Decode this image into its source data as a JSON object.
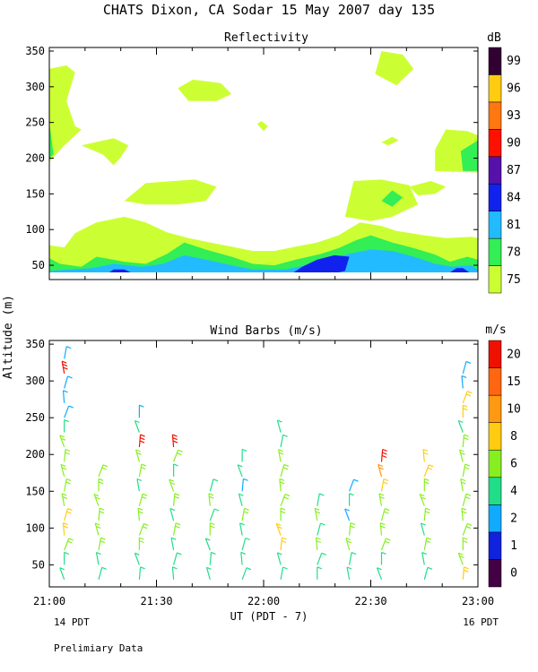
{
  "title": "CHATS Dixon, CA  Sodar  15 May 2007  day 135",
  "ylabel": "Altitude (m)",
  "xlabel": "UT  (PDT - 7)",
  "footer": {
    "left_local": "14 PDT",
    "right_local": "16 PDT",
    "note": "Prelimiary Data"
  },
  "chart_data": [
    {
      "type": "heatmap",
      "title": "Reflectivity",
      "colorbar_unit": "dB",
      "x_ticks": [
        "21:00",
        "21:30",
        "22:00",
        "22:30",
        "23:00"
      ],
      "x_range_hours": [
        21.0,
        23.0
      ],
      "ylim": [
        30,
        355
      ],
      "y_ticks": [
        50,
        100,
        150,
        200,
        250,
        300,
        350
      ],
      "colorbar": [
        {
          "label": "75",
          "color": "#ccff33"
        },
        {
          "label": "78",
          "color": "#33ee55"
        },
        {
          "label": "81",
          "color": "#22bbff"
        },
        {
          "label": "84",
          "color": "#1122ee"
        },
        {
          "label": "87",
          "color": "#5511aa"
        },
        {
          "label": "90",
          "color": "#ff1100"
        },
        {
          "label": "93",
          "color": "#ff7711"
        },
        {
          "label": "96",
          "color": "#ffcc11"
        },
        {
          "label": "99",
          "color": "#330033"
        }
      ],
      "regions": [
        {
          "level": "75",
          "points": [
            [
              21.0,
              40
            ],
            [
              23.0,
              40
            ],
            [
              23.0,
              88
            ],
            [
              22.97,
              90
            ],
            [
              22.85,
              88
            ],
            [
              22.75,
              92
            ],
            [
              22.62,
              98
            ],
            [
              22.55,
              105
            ],
            [
              22.45,
              110
            ],
            [
              22.35,
              92
            ],
            [
              22.25,
              82
            ],
            [
              22.15,
              76
            ],
            [
              22.05,
              70
            ],
            [
              21.95,
              70
            ],
            [
              21.85,
              76
            ],
            [
              21.75,
              82
            ],
            [
              21.65,
              88
            ],
            [
              21.55,
              96
            ],
            [
              21.45,
              110
            ],
            [
              21.35,
              118
            ],
            [
              21.22,
              110
            ],
            [
              21.12,
              95
            ],
            [
              21.07,
              75
            ],
            [
              21.0,
              78
            ]
          ]
        },
        {
          "level": "75",
          "points": [
            [
              21.0,
              325
            ],
            [
              21.08,
              330
            ],
            [
              21.12,
              320
            ],
            [
              21.08,
              280
            ],
            [
              21.12,
              245
            ],
            [
              21.15,
              240
            ],
            [
              21.06,
              215
            ],
            [
              21.0,
              195
            ]
          ]
        },
        {
          "level": "75",
          "points": [
            [
              21.15,
              218
            ],
            [
              21.3,
              228
            ],
            [
              21.37,
              218
            ],
            [
              21.33,
              200
            ],
            [
              21.3,
              190
            ],
            [
              21.25,
              205
            ]
          ]
        },
        {
          "level": "75",
          "points": [
            [
              21.6,
              298
            ],
            [
              21.67,
              310
            ],
            [
              21.8,
              305
            ],
            [
              21.85,
              290
            ],
            [
              21.78,
              280
            ],
            [
              21.65,
              280
            ]
          ]
        },
        {
          "level": "75",
          "points": [
            [
              21.35,
              140
            ],
            [
              21.45,
              165
            ],
            [
              21.58,
              168
            ],
            [
              21.68,
              170
            ],
            [
              21.78,
              160
            ],
            [
              21.73,
              140
            ],
            [
              21.6,
              135
            ],
            [
              21.45,
              135
            ]
          ]
        },
        {
          "level": "75",
          "points": [
            [
              21.97,
              248
            ],
            [
              22.0,
              238
            ],
            [
              22.02,
              245
            ],
            [
              21.99,
              252
            ]
          ]
        },
        {
          "level": "75",
          "points": [
            [
              22.38,
              118
            ],
            [
              22.42,
              168
            ],
            [
              22.55,
              170
            ],
            [
              22.68,
              162
            ],
            [
              22.72,
              135
            ],
            [
              22.6,
              118
            ],
            [
              22.5,
              112
            ]
          ]
        },
        {
          "level": "75",
          "points": [
            [
              22.55,
              222
            ],
            [
              22.6,
              230
            ],
            [
              22.63,
              225
            ],
            [
              22.58,
              218
            ]
          ]
        },
        {
          "level": "75",
          "points": [
            [
              22.68,
              160
            ],
            [
              22.78,
              168
            ],
            [
              22.85,
              160
            ],
            [
              22.8,
              150
            ],
            [
              22.72,
              148
            ]
          ]
        },
        {
          "level": "75",
          "points": [
            [
              22.8,
              212
            ],
            [
              22.85,
              240
            ],
            [
              22.95,
              238
            ],
            [
              23.0,
              232
            ],
            [
              23.0,
              180
            ],
            [
              22.8,
              182
            ]
          ]
        },
        {
          "level": "75",
          "points": [
            [
              22.52,
              318
            ],
            [
              22.62,
              302
            ],
            [
              22.7,
              325
            ],
            [
              22.65,
              345
            ],
            [
              22.55,
              350
            ]
          ]
        },
        {
          "level": "78",
          "points": [
            [
              21.0,
              40
            ],
            [
              23.0,
              40
            ],
            [
              23.0,
              58
            ],
            [
              22.95,
              62
            ],
            [
              22.87,
              55
            ],
            [
              22.8,
              65
            ],
            [
              22.7,
              74
            ],
            [
              22.6,
              82
            ],
            [
              22.5,
              92
            ],
            [
              22.43,
              85
            ],
            [
              22.35,
              74
            ],
            [
              22.27,
              66
            ],
            [
              22.15,
              58
            ],
            [
              22.05,
              50
            ],
            [
              21.95,
              52
            ],
            [
              21.85,
              62
            ],
            [
              21.73,
              72
            ],
            [
              21.63,
              82
            ],
            [
              21.55,
              66
            ],
            [
              21.45,
              52
            ],
            [
              21.35,
              55
            ],
            [
              21.22,
              62
            ],
            [
              21.15,
              48
            ],
            [
              21.05,
              52
            ],
            [
              21.0,
              60
            ]
          ]
        },
        {
          "level": "78",
          "points": [
            [
              21.0,
              250
            ],
            [
              21.02,
              205
            ],
            [
              21.0,
              200
            ]
          ]
        },
        {
          "level": "78",
          "points": [
            [
              22.92,
              210
            ],
            [
              22.93,
              182
            ],
            [
              23.0,
              182
            ],
            [
              23.0,
              225
            ]
          ]
        },
        {
          "level": "78",
          "points": [
            [
              22.55,
              140
            ],
            [
              22.6,
              155
            ],
            [
              22.65,
              145
            ],
            [
              22.6,
              132
            ]
          ]
        },
        {
          "level": "81",
          "points": [
            [
              21.0,
              40
            ],
            [
              23.0,
              40
            ],
            [
              23.0,
              44
            ],
            [
              22.97,
              50
            ],
            [
              22.88,
              48
            ],
            [
              22.8,
              52
            ],
            [
              22.7,
              62
            ],
            [
              22.6,
              70
            ],
            [
              22.5,
              72
            ],
            [
              22.4,
              66
            ],
            [
              22.3,
              58
            ],
            [
              22.2,
              50
            ],
            [
              22.1,
              44
            ],
            [
              21.95,
              44
            ],
            [
              21.85,
              50
            ],
            [
              21.73,
              58
            ],
            [
              21.63,
              64
            ],
            [
              21.53,
              52
            ],
            [
              21.43,
              48
            ],
            [
              21.3,
              52
            ],
            [
              21.2,
              46
            ],
            [
              21.1,
              44
            ],
            [
              21.0,
              42
            ]
          ]
        },
        {
          "level": "84",
          "points": [
            [
              22.14,
              40
            ],
            [
              22.35,
              40
            ],
            [
              22.38,
              42
            ],
            [
              22.4,
              62
            ],
            [
              22.33,
              64
            ],
            [
              22.25,
              58
            ],
            [
              22.18,
              48
            ]
          ]
        },
        {
          "level": "84",
          "points": [
            [
              21.28,
              40
            ],
            [
              21.38,
              40
            ],
            [
              21.35,
              44
            ],
            [
              21.3,
              44
            ]
          ]
        },
        {
          "level": "84",
          "points": [
            [
              22.87,
              40
            ],
            [
              22.96,
              40
            ],
            [
              22.93,
              46
            ],
            [
              22.9,
              46
            ]
          ]
        }
      ]
    },
    {
      "type": "scatter",
      "title": "Wind Barbs (m/s)",
      "colorbar_unit": "m/s",
      "x_ticks": [
        "21:00",
        "21:30",
        "22:00",
        "22:30",
        "23:00"
      ],
      "x_range_hours": [
        21.0,
        23.0
      ],
      "ylim": [
        20,
        355
      ],
      "y_ticks": [
        50,
        100,
        150,
        200,
        250,
        300,
        350
      ],
      "colorbar": [
        {
          "label": "0",
          "color": "#440044"
        },
        {
          "label": "1",
          "color": "#1122dd"
        },
        {
          "label": "2",
          "color": "#11aaff"
        },
        {
          "label": "4",
          "color": "#22dd88"
        },
        {
          "label": "6",
          "color": "#88ee22"
        },
        {
          "label": "8",
          "color": "#ffcc11"
        },
        {
          "label": "10",
          "color": "#ff9911"
        },
        {
          "label": "15",
          "color": "#ff6611"
        },
        {
          "label": "20",
          "color": "#ee1100"
        }
      ],
      "altitudes": [
        30,
        50,
        70,
        90,
        110,
        130,
        150,
        170,
        190,
        210,
        230,
        250,
        270,
        290,
        310,
        330
      ],
      "columns": [
        {
          "time": 21.07,
          "speeds": [
            4,
            4,
            6,
            8,
            8,
            6,
            6,
            6,
            6,
            6,
            4,
            2,
            2,
            2,
            20,
            2
          ]
        },
        {
          "time": 21.23,
          "speeds": [
            4,
            4,
            6,
            6,
            6,
            6,
            6,
            6
          ]
        },
        {
          "time": 21.42,
          "speeds": [
            4,
            4,
            6,
            6,
            6,
            6,
            4,
            6,
            6,
            20,
            4,
            2
          ]
        },
        {
          "time": 21.58,
          "speeds": [
            4,
            4,
            4,
            6,
            4,
            6,
            6,
            4,
            6,
            20
          ]
        },
        {
          "time": 21.75,
          "speeds": [
            4,
            4,
            4,
            6,
            4,
            6,
            4
          ]
        },
        {
          "time": 21.9,
          "speeds": [
            4,
            4,
            4,
            4,
            6,
            4,
            2,
            4,
            4
          ]
        },
        {
          "time": 22.08,
          "speeds": [
            4,
            4,
            8,
            8,
            6,
            6,
            6,
            6,
            6,
            4,
            4
          ]
        },
        {
          "time": 22.25,
          "speeds": [
            4,
            4,
            6,
            4,
            6,
            4
          ]
        },
        {
          "time": 22.4,
          "speeds": [
            4,
            4,
            6,
            6,
            2,
            4,
            2
          ]
        },
        {
          "time": 22.55,
          "speeds": [
            4,
            4,
            6,
            6,
            6,
            6,
            8,
            10,
            20
          ]
        },
        {
          "time": 22.75,
          "speeds": [
            4,
            4,
            6,
            4,
            6,
            6,
            6,
            8,
            8
          ]
        },
        {
          "time": 22.93,
          "speeds": [
            8,
            6,
            6,
            6,
            6,
            6,
            6,
            6,
            6,
            6,
            4,
            8,
            8,
            2,
            2
          ]
        }
      ]
    }
  ]
}
